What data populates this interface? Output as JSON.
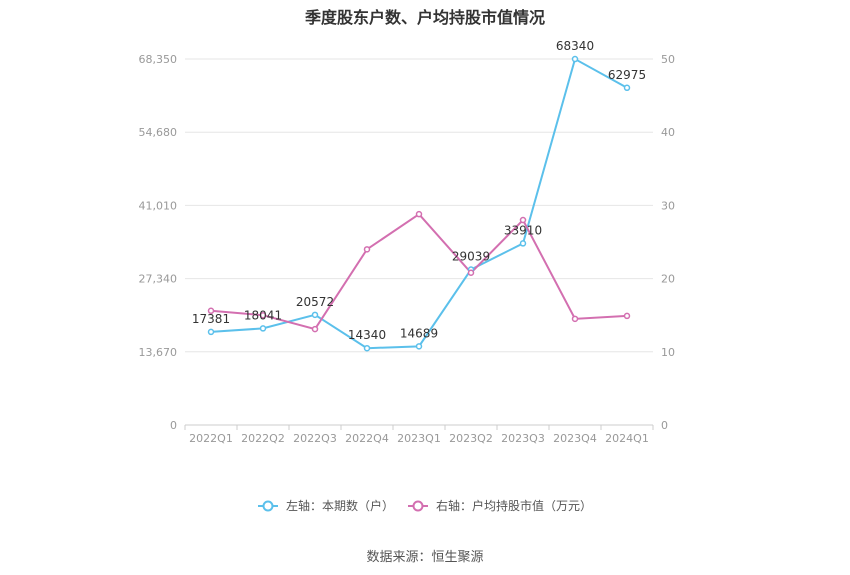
{
  "chart_data": {
    "type": "line",
    "title": "季度股东户数、户均持股市值情况",
    "categories": [
      "2022Q1",
      "2022Q2",
      "2022Q3",
      "2022Q4",
      "2023Q1",
      "2023Q2",
      "2023Q3",
      "2023Q4",
      "2024Q1"
    ],
    "left_axis": {
      "ticks": [
        "0",
        "13,670",
        "27,340",
        "41,010",
        "54,680",
        "68,350"
      ],
      "ylim": [
        0,
        68350
      ]
    },
    "right_axis": {
      "ticks": [
        "0",
        "10",
        "20",
        "30",
        "40",
        "50"
      ],
      "ylim": [
        0,
        50
      ]
    },
    "series": [
      {
        "name": "左轴：本期数（户）",
        "axis": "left",
        "color": "#5bc0eb",
        "values": [
          17381,
          18041,
          20572,
          14340,
          14689,
          29039,
          33910,
          68340,
          62975
        ],
        "labels": [
          "17381",
          "18041",
          "20572",
          "14340",
          "14689",
          "29039",
          "33910",
          "68340",
          "62975"
        ]
      },
      {
        "name": "右轴：户均持股市值（万元）",
        "axis": "right",
        "color": "#d36fb0",
        "values": [
          15.6,
          15.0,
          13.1,
          24.0,
          28.8,
          20.8,
          28.0,
          14.5,
          14.9
        ]
      }
    ],
    "grid": true,
    "legend_position": "bottom-center"
  },
  "source": "数据来源：恒生聚源"
}
